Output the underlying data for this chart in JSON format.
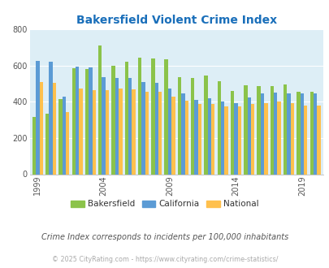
{
  "title": "Bakersfield Violent Crime Index",
  "years": [
    1999,
    2000,
    2001,
    2002,
    2003,
    2004,
    2005,
    2006,
    2007,
    2008,
    2009,
    2010,
    2011,
    2012,
    2013,
    2014,
    2015,
    2016,
    2017,
    2018,
    2019,
    2020
  ],
  "bakersfield": [
    315,
    335,
    415,
    585,
    580,
    710,
    600,
    620,
    645,
    640,
    635,
    535,
    530,
    545,
    515,
    460,
    490,
    485,
    485,
    495,
    455,
    455
  ],
  "california": [
    625,
    620,
    430,
    595,
    590,
    535,
    530,
    530,
    510,
    505,
    475,
    445,
    410,
    420,
    400,
    395,
    425,
    445,
    450,
    445,
    445,
    445
  ],
  "national": [
    510,
    505,
    345,
    475,
    465,
    465,
    475,
    470,
    455,
    455,
    430,
    405,
    390,
    390,
    375,
    375,
    390,
    395,
    400,
    395,
    380,
    380
  ],
  "bar_colors": {
    "bakersfield": "#8bc34a",
    "california": "#5b9bd5",
    "national": "#ffc04d"
  },
  "bg_color": "#ddeef6",
  "ylim": [
    0,
    800
  ],
  "yticks": [
    0,
    200,
    400,
    600,
    800
  ],
  "xtick_labels": [
    "1999",
    "2004",
    "2009",
    "2014",
    "2019"
  ],
  "xtick_years": [
    1999,
    2004,
    2009,
    2014,
    2019
  ],
  "footnote1": "Crime Index corresponds to incidents per 100,000 inhabitants",
  "footnote2": "© 2025 CityRating.com - https://www.cityrating.com/crime-statistics/",
  "legend_labels": [
    "Bakersfield",
    "California",
    "National"
  ]
}
